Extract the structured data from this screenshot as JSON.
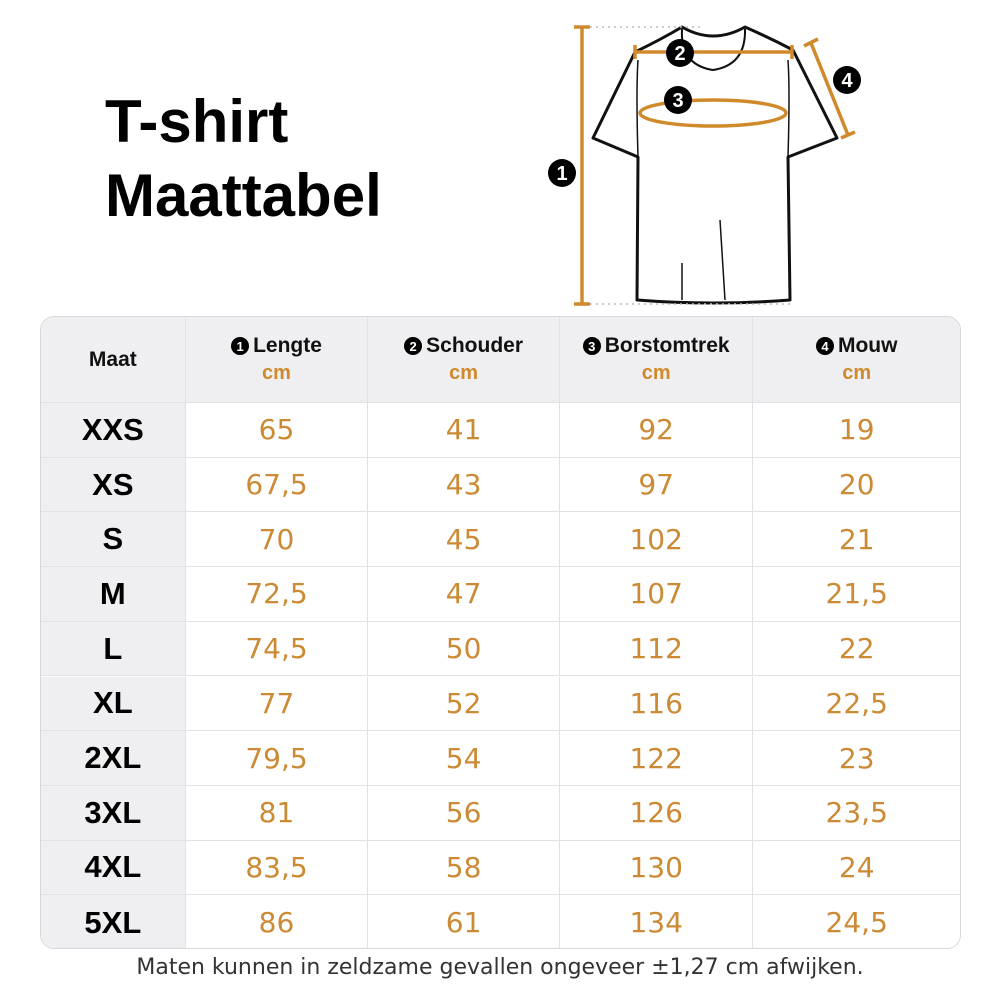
{
  "title_line1": "T-shirt",
  "title_line2": "Maattabel",
  "diagram": {
    "markers": [
      "1",
      "2",
      "3",
      "4"
    ],
    "accent_color": "#d08a2c"
  },
  "table": {
    "headers": [
      {
        "label": "Maat"
      },
      {
        "number": "1",
        "label": "Lengte",
        "unit": "cm"
      },
      {
        "number": "2",
        "label": "Schouder",
        "unit": "cm"
      },
      {
        "number": "3",
        "label": "Borstomtrek",
        "unit": "cm"
      },
      {
        "number": "4",
        "label": "Mouw",
        "unit": "cm"
      }
    ],
    "rows": [
      [
        "XXS",
        "65",
        "41",
        "92",
        "19"
      ],
      [
        "XS",
        "67,5",
        "43",
        "97",
        "20"
      ],
      [
        "S",
        "70",
        "45",
        "102",
        "21"
      ],
      [
        "M",
        "72,5",
        "47",
        "107",
        "21,5"
      ],
      [
        "L",
        "74,5",
        "50",
        "112",
        "22"
      ],
      [
        "XL",
        "77",
        "52",
        "116",
        "22,5"
      ],
      [
        "2XL",
        "79,5",
        "54",
        "122",
        "23"
      ],
      [
        "3XL",
        "81",
        "56",
        "126",
        "23,5"
      ],
      [
        "4XL",
        "83,5",
        "58",
        "130",
        "24"
      ],
      [
        "5XL",
        "86",
        "61",
        "134",
        "24,5"
      ]
    ]
  },
  "footnote": "Maten kunnen in zeldzame gevallen ongeveer ±1,27 cm afwijken."
}
